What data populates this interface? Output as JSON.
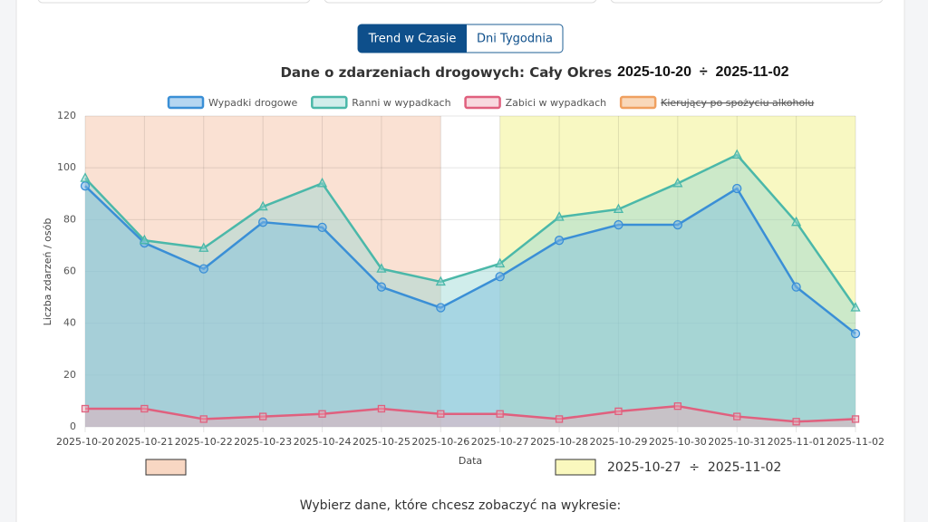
{
  "tabs": [
    "Trend w Czasie",
    "Dni Tygodnia"
  ],
  "chart_data": {
    "type": "line",
    "title": "Dane o zdarzeniach drogowych: Cały Okres",
    "title_range": "2025-10-20  ÷  2025-11-02",
    "x_label": "Data",
    "y_label": "Liczba zdarzeń / osób",
    "categories": [
      "2025-10-20",
      "2025-10-21",
      "2025-10-22",
      "2025-10-23",
      "2025-10-24",
      "2025-10-25",
      "2025-10-26",
      "2025-10-27",
      "2025-10-28",
      "2025-10-29",
      "2025-10-30",
      "2025-10-31",
      "2025-11-01",
      "2025-11-02"
    ],
    "series": [
      {
        "name": "Wypadki drogowe",
        "color": "#3a8fd6",
        "fill": "rgba(120,180,230,0.55)",
        "marker": "circle",
        "values": [
          93,
          71,
          61,
          79,
          77,
          54,
          46,
          58,
          72,
          78,
          78,
          92,
          54,
          36
        ]
      },
      {
        "name": "Ranni w wypadkach",
        "color": "#4bb8a9",
        "fill": "rgba(150,215,210,0.45)",
        "marker": "triangle",
        "values": [
          96,
          72,
          69,
          85,
          94,
          61,
          56,
          63,
          81,
          84,
          94,
          105,
          79,
          46
        ]
      },
      {
        "name": "Zabici w wypadkach",
        "color": "#e0607e",
        "fill": "rgba(240,170,185,0.45)",
        "marker": "square",
        "values": [
          7,
          7,
          3,
          4,
          5,
          7,
          5,
          5,
          3,
          6,
          8,
          4,
          2,
          3
        ]
      }
    ],
    "hidden_series": {
      "name": "Kierujący po spożyciu alkoholu",
      "color": "#f0a060"
    },
    "regions": [
      {
        "from": 0,
        "to": 6,
        "color": "rgba(240,170,130,0.35)"
      },
      {
        "from": 7,
        "to": 13,
        "color": "rgba(240,240,120,0.45)",
        "label": "2025-10-27  ÷  2025-11-02"
      }
    ],
    "ylim": [
      0,
      120
    ],
    "yticks": [
      0,
      20,
      40,
      60,
      80,
      100,
      120
    ],
    "grid": true
  },
  "prompt": "Wybierz dane, które chcesz zobaczyć na wykresie:"
}
